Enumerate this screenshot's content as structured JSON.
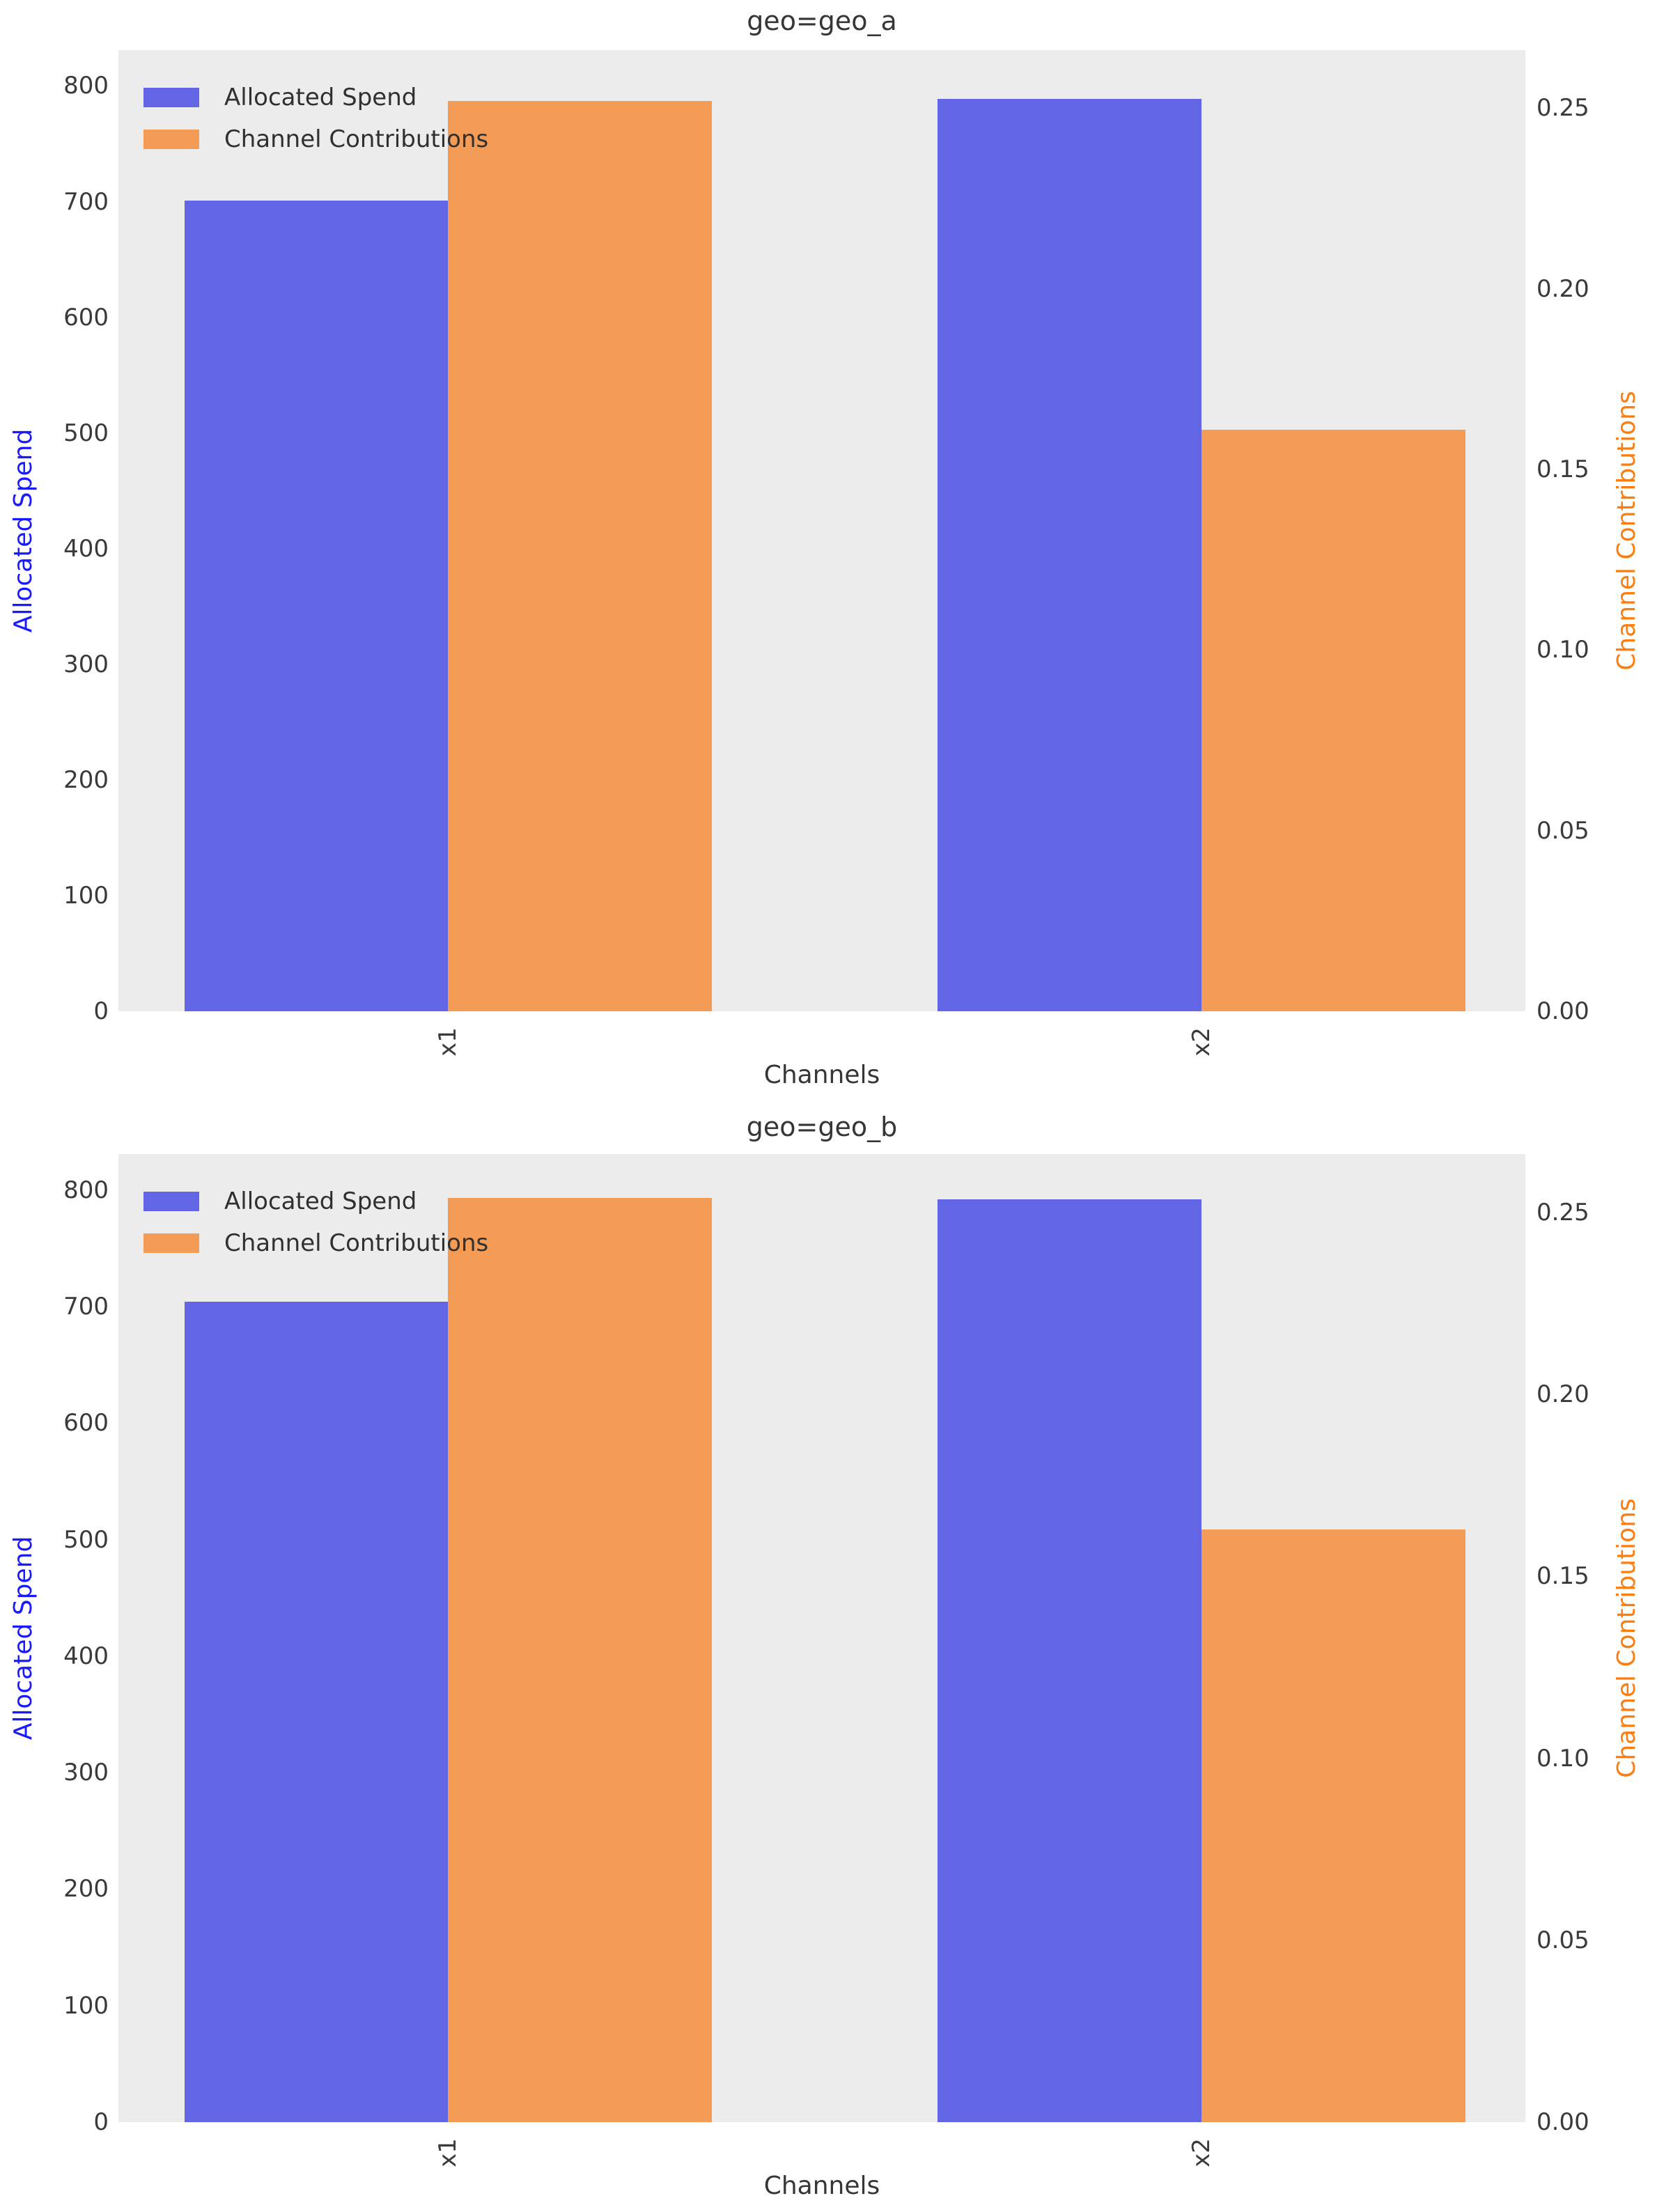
{
  "figure": {
    "background_color": "#ffffff",
    "plot_background_color": "#ececec",
    "text_color": "#363636"
  },
  "colors": {
    "allocated_spend_bar": "#6266e5",
    "channel_contributions_bar": "#f49c55",
    "left_axis_label_color": "#1a1aff",
    "right_axis_label_color": "#fb7d10"
  },
  "legend": {
    "items": [
      {
        "label": "Allocated Spend",
        "color_key": "allocated_spend_bar"
      },
      {
        "label": "Channel Contributions",
        "color_key": "channel_contributions_bar"
      }
    ],
    "position": "upper left"
  },
  "chart_data": [
    {
      "type": "bar",
      "title": "geo=geo_a",
      "xlabel": "Channels",
      "ylabel_left": "Allocated Spend",
      "ylabel_right": "Channel Contributions",
      "categories": [
        "x1",
        "x2"
      ],
      "series": [
        {
          "name": "Allocated Spend",
          "axis": "left",
          "values": [
            701,
            789
          ]
        },
        {
          "name": "Channel Contributions",
          "axis": "right",
          "values": [
            0.252,
            0.161
          ]
        }
      ],
      "ylim_left": [
        0,
        831
      ],
      "ylim_right": [
        0,
        0.2661
      ],
      "yticks_left": [
        0,
        100,
        200,
        300,
        400,
        500,
        600,
        700,
        800
      ],
      "yticks_right": [
        0.0,
        0.05,
        0.1,
        0.15,
        0.2,
        0.25
      ],
      "grid": false,
      "legend_position": "upper left"
    },
    {
      "type": "bar",
      "title": "geo=geo_b",
      "xlabel": "Channels",
      "ylabel_left": "Allocated Spend",
      "ylabel_right": "Channel Contributions",
      "categories": [
        "x1",
        "x2"
      ],
      "series": [
        {
          "name": "Allocated Spend",
          "axis": "left",
          "values": [
            704,
            792
          ]
        },
        {
          "name": "Channel Contributions",
          "axis": "right",
          "values": [
            0.254,
            0.163
          ]
        }
      ],
      "ylim_left": [
        0,
        831
      ],
      "ylim_right": [
        0,
        0.2661
      ],
      "yticks_left": [
        0,
        100,
        200,
        300,
        400,
        500,
        600,
        700,
        800
      ],
      "yticks_right": [
        0.0,
        0.05,
        0.1,
        0.15,
        0.2,
        0.25
      ],
      "grid": false,
      "legend_position": "upper left"
    }
  ]
}
